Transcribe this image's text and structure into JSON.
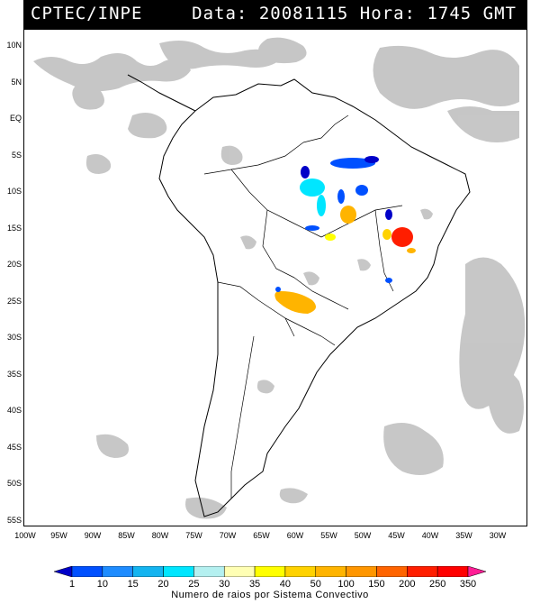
{
  "header": {
    "source": "CPTEC/INPE",
    "date_label": "Data:",
    "date_value": "20081115",
    "time_label": "Hora:",
    "time_value": "1745",
    "time_unit": "GMT"
  },
  "lat_ticks": [
    "10N",
    "5N",
    "EQ",
    "5S",
    "10S",
    "15S",
    "20S",
    "25S",
    "30S",
    "35S",
    "40S",
    "45S",
    "50S",
    "55S"
  ],
  "lon_ticks": [
    "100W",
    "95W",
    "90W",
    "85W",
    "80W",
    "75W",
    "70W",
    "65W",
    "60W",
    "55W",
    "50W",
    "45W",
    "40W",
    "35W",
    "30W"
  ],
  "legend": {
    "values": [
      "1",
      "10",
      "15",
      "20",
      "25",
      "30",
      "35",
      "40",
      "50",
      "100",
      "150",
      "200",
      "250",
      "350"
    ],
    "colors": [
      "#0000c8",
      "#0050ff",
      "#1e8cff",
      "#14b4f0",
      "#00e6ff",
      "#b4f0f0",
      "#ffffb4",
      "#ffff00",
      "#ffd200",
      "#ffb400",
      "#ff9600",
      "#ff6400",
      "#ff1e00",
      "#ff0000",
      "#ff1e96"
    ],
    "caption": "Numero de raios por Sistema Convectivo"
  },
  "colors": {
    "cloud_gray": "#b4b4b4",
    "coast_line": "#000000"
  }
}
